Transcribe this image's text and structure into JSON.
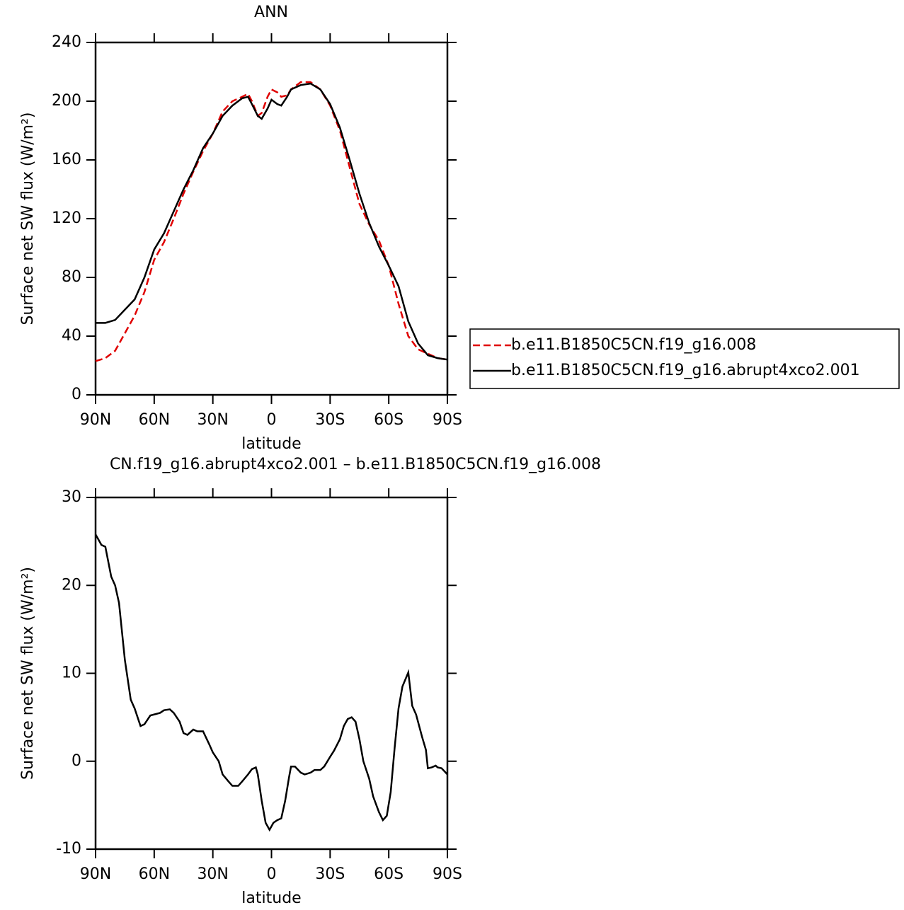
{
  "chart_data": [
    {
      "type": "line",
      "title": "ANN",
      "x_label": "latitude",
      "y_label": "Surface net SW flux (W/m²)",
      "xlim": [
        90,
        -90
      ],
      "xticks": [
        {
          "value": 90,
          "label": "90N"
        },
        {
          "value": 60,
          "label": "60N"
        },
        {
          "value": 30,
          "label": "30N"
        },
        0,
        {
          "value": -30,
          "label": "30S"
        },
        {
          "value": -60,
          "label": "60S"
        },
        {
          "value": -90,
          "label": "90S"
        }
      ],
      "ylim": [
        0,
        240
      ],
      "yticks": [
        0,
        40,
        80,
        120,
        160,
        200,
        240
      ],
      "legend": "outside-right",
      "x": [
        90,
        85,
        80,
        75,
        70,
        65,
        60,
        55,
        50,
        45,
        40,
        35,
        30,
        25,
        20,
        15,
        12,
        10,
        7,
        5,
        2,
        0,
        -3,
        -5,
        -8,
        -10,
        -15,
        -20,
        -25,
        -30,
        -35,
        -40,
        -45,
        -50,
        -55,
        -60,
        -65,
        -70,
        -75,
        -80,
        -85,
        -90
      ],
      "series": [
        {
          "name": "b.e11.B1850C5CN.f19_g16.008",
          "color": "#e00000",
          "linestyle": "dashed",
          "values": [
            23,
            25,
            30,
            42,
            54,
            70,
            92,
            104,
            120,
            137,
            152,
            166,
            178,
            193,
            200,
            203,
            205,
            200,
            190,
            192,
            203,
            208,
            206,
            203,
            204,
            208,
            213,
            213,
            208,
            197,
            180,
            155,
            130,
            116,
            105,
            88,
            62,
            40,
            31,
            28,
            25,
            24
          ]
        },
        {
          "name": "b.e11.B1850C5CN.f19_g16.abrupt4xco2.001",
          "color": "#000000",
          "linestyle": "solid",
          "values": [
            49,
            49,
            51,
            58,
            65,
            80,
            99,
            110,
            125,
            140,
            153,
            168,
            178,
            190,
            197,
            202,
            203,
            198,
            190,
            188,
            195,
            201,
            198,
            197,
            203,
            208,
            211,
            212,
            208,
            198,
            182,
            160,
            137,
            117,
            101,
            88,
            74,
            50,
            35,
            27,
            25,
            24
          ]
        }
      ]
    },
    {
      "type": "line",
      "title": "CN.f19_g16.abrupt4xco2.001 – b.e11.B1850C5CN.f19_g16.008",
      "x_label": "latitude",
      "y_label": "Surface net SW flux (W/m²)",
      "xlim": [
        90,
        -90
      ],
      "xticks": [
        {
          "value": 90,
          "label": "90N"
        },
        {
          "value": 60,
          "label": "60N"
        },
        {
          "value": 30,
          "label": "30N"
        },
        0,
        {
          "value": -30,
          "label": "30S"
        },
        {
          "value": -60,
          "label": "60S"
        },
        {
          "value": -90,
          "label": "90S"
        }
      ],
      "ylim": [
        -10,
        30
      ],
      "yticks": [
        -10,
        0,
        10,
        20,
        30
      ],
      "color": "#000000",
      "x": [
        90,
        87,
        85,
        82,
        80,
        78,
        75,
        72,
        70,
        67,
        65,
        62,
        57,
        55,
        52,
        50,
        47,
        45,
        43,
        40,
        38,
        35,
        32,
        30,
        27,
        25,
        22,
        20,
        17,
        15,
        12,
        10,
        8,
        7,
        5,
        3,
        1,
        -1,
        -3,
        -5,
        -7,
        -9,
        -10,
        -12,
        -15,
        -17,
        -20,
        -22,
        -25,
        -27,
        -30,
        -32,
        -35,
        -37,
        -39,
        -41,
        -43,
        -45,
        -47,
        -50,
        -52,
        -55,
        -57,
        -59,
        -61,
        -63,
        -65,
        -67,
        -70,
        -72,
        -74,
        -77,
        -79,
        -80,
        -82,
        -84,
        -85,
        -87,
        -90
      ],
      "values": [
        25.8,
        24.6,
        24.4,
        21,
        20,
        18,
        11.5,
        7,
        6,
        4,
        4.2,
        5.2,
        5.5,
        5.8,
        5.9,
        5.5,
        4.5,
        3.2,
        3,
        3.6,
        3.4,
        3.4,
        2,
        1,
        0,
        -1.5,
        -2.3,
        -2.8,
        -2.8,
        -2.3,
        -1.5,
        -0.9,
        -0.7,
        -1.5,
        -4.5,
        -7,
        -7.8,
        -7,
        -6.7,
        -6.5,
        -4.5,
        -1.8,
        -0.6,
        -0.6,
        -1.3,
        -1.5,
        -1.3,
        -1,
        -1,
        -0.6,
        0.5,
        1.2,
        2.5,
        4,
        4.8,
        5,
        4.5,
        2.5,
        0,
        -2,
        -4,
        -5.8,
        -6.7,
        -6.2,
        -3.5,
        1.5,
        6,
        8.5,
        10.1,
        6.3,
        5.3,
        2.8,
        1.3,
        -0.8,
        -0.7,
        -0.5,
        -0.7,
        -0.8,
        -1.5
      ]
    }
  ]
}
